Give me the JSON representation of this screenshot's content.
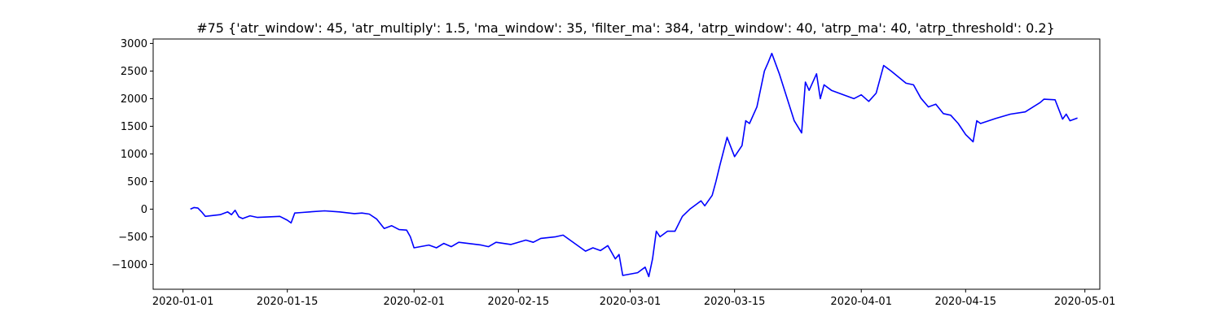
{
  "chart_data": {
    "type": "line",
    "title": "#75 {'atr_window': 45, 'atr_multiply': 1.5, 'ma_window': 35, 'filter_ma': 384, 'atrp_window': 40, 'atrp_ma': 40, 'atrp_threshold': 0.2}",
    "xlabel": "",
    "ylabel": "",
    "ylim": [
      -1450,
      3080
    ],
    "xlim": [
      "2019-12-28",
      "2020-05-03"
    ],
    "grid": false,
    "x_ticks": [
      "2020-01-01",
      "2020-01-15",
      "2020-02-01",
      "2020-02-15",
      "2020-03-01",
      "2020-03-15",
      "2020-04-01",
      "2020-04-15",
      "2020-05-01"
    ],
    "y_ticks": [
      -1000,
      -500,
      0,
      500,
      1000,
      1500,
      2000,
      2500,
      3000
    ],
    "series": [
      {
        "color": "#0000ff",
        "x": [
          "2020-01-02",
          "2020-01-02T12:00",
          "2020-01-03",
          "2020-01-03T12:00",
          "2020-01-04",
          "2020-01-06",
          "2020-01-07",
          "2020-01-07T12:00",
          "2020-01-08",
          "2020-01-08T12:00",
          "2020-01-09",
          "2020-01-10",
          "2020-01-11",
          "2020-01-14",
          "2020-01-15",
          "2020-01-15T12:00",
          "2020-01-16",
          "2020-01-17",
          "2020-01-18",
          "2020-01-20",
          "2020-01-22",
          "2020-01-24",
          "2020-01-25",
          "2020-01-26",
          "2020-01-27",
          "2020-01-28",
          "2020-01-29",
          "2020-01-30",
          "2020-01-31",
          "2020-01-31T12:00",
          "2020-02-01",
          "2020-02-03",
          "2020-02-04",
          "2020-02-05",
          "2020-02-06",
          "2020-02-07",
          "2020-02-10",
          "2020-02-11",
          "2020-02-12",
          "2020-02-14",
          "2020-02-16",
          "2020-02-17",
          "2020-02-18",
          "2020-02-20",
          "2020-02-21",
          "2020-02-24",
          "2020-02-25",
          "2020-02-26",
          "2020-02-27",
          "2020-02-28",
          "2020-02-28T12:00",
          "2020-02-29",
          "2020-03-02",
          "2020-03-03",
          "2020-03-03T12:00",
          "2020-03-04",
          "2020-03-04T12:00",
          "2020-03-05",
          "2020-03-06",
          "2020-03-07",
          "2020-03-08",
          "2020-03-09",
          "2020-03-10",
          "2020-03-10T12:00",
          "2020-03-11",
          "2020-03-12",
          "2020-03-12T12:00",
          "2020-03-13",
          "2020-03-14",
          "2020-03-15",
          "2020-03-16",
          "2020-03-16T12:00",
          "2020-03-17",
          "2020-03-18",
          "2020-03-19",
          "2020-03-19T12:00",
          "2020-03-20",
          "2020-03-21",
          "2020-03-23",
          "2020-03-24",
          "2020-03-24T12:00",
          "2020-03-25",
          "2020-03-26",
          "2020-03-26T12:00",
          "2020-03-27",
          "2020-03-28",
          "2020-03-30",
          "2020-03-31",
          "2020-04-01",
          "2020-04-02",
          "2020-04-03",
          "2020-04-04",
          "2020-04-05",
          "2020-04-07",
          "2020-04-08",
          "2020-04-09",
          "2020-04-10",
          "2020-04-11",
          "2020-04-12",
          "2020-04-13",
          "2020-04-14",
          "2020-04-15",
          "2020-04-16",
          "2020-04-16T12:00",
          "2020-04-17",
          "2020-04-19",
          "2020-04-21",
          "2020-04-23",
          "2020-04-25",
          "2020-04-25T12:00",
          "2020-04-27",
          "2020-04-28",
          "2020-04-28T12:00",
          "2020-04-29",
          "2020-04-30"
        ],
        "values": [
          0,
          30,
          20,
          -50,
          -130,
          -100,
          -50,
          -100,
          -20,
          -140,
          -170,
          -120,
          -150,
          -130,
          -200,
          -250,
          -70,
          -60,
          -50,
          -30,
          -50,
          -80,
          -70,
          -90,
          -180,
          -350,
          -300,
          -370,
          -380,
          -500,
          -700,
          -650,
          -700,
          -620,
          -680,
          -600,
          -650,
          -680,
          -600,
          -640,
          -560,
          -600,
          -530,
          -500,
          -470,
          -760,
          -700,
          -750,
          -660,
          -900,
          -820,
          -1200,
          -1150,
          -1050,
          -1220,
          -900,
          -400,
          -500,
          -400,
          -400,
          -130,
          0,
          100,
          150,
          60,
          250,
          500,
          780,
          1300,
          950,
          1150,
          1600,
          1550,
          1850,
          2500,
          2650,
          2820,
          2450,
          1600,
          1380,
          2300,
          2150,
          2450,
          2000,
          2250,
          2150,
          2050,
          2000,
          2070,
          1950,
          2100,
          2600,
          2500,
          2280,
          2250,
          2010,
          1850,
          1900,
          1730,
          1700,
          1550,
          1350,
          1220,
          1600,
          1550,
          1640,
          1720,
          1760,
          1930,
          1990,
          1980,
          1630,
          1720,
          1600,
          1650
        ]
      }
    ]
  }
}
